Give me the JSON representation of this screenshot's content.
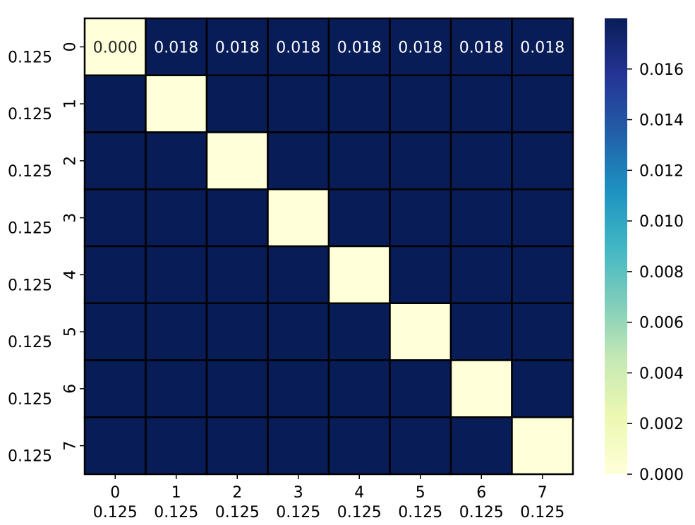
{
  "chart_data": {
    "type": "heatmap",
    "row_labels": [
      "0",
      "1",
      "2",
      "3",
      "4",
      "5",
      "6",
      "7"
    ],
    "row_secondary_labels": [
      "0.125",
      "0.125",
      "0.125",
      "0.125",
      "0.125",
      "0.125",
      "0.125",
      "0.125"
    ],
    "col_labels": [
      "0",
      "1",
      "2",
      "3",
      "4",
      "5",
      "6",
      "7"
    ],
    "col_secondary_labels": [
      "0.125",
      "0.125",
      "0.125",
      "0.125",
      "0.125",
      "0.125",
      "0.125",
      "0.125"
    ],
    "values": [
      [
        0.0,
        0.018,
        0.018,
        0.018,
        0.018,
        0.018,
        0.018,
        0.018
      ],
      [
        0.018,
        0.0,
        0.018,
        0.018,
        0.018,
        0.018,
        0.018,
        0.018
      ],
      [
        0.018,
        0.018,
        0.0,
        0.018,
        0.018,
        0.018,
        0.018,
        0.018
      ],
      [
        0.018,
        0.018,
        0.018,
        0.0,
        0.018,
        0.018,
        0.018,
        0.018
      ],
      [
        0.018,
        0.018,
        0.018,
        0.018,
        0.0,
        0.018,
        0.018,
        0.018
      ],
      [
        0.018,
        0.018,
        0.018,
        0.018,
        0.018,
        0.0,
        0.018,
        0.018
      ],
      [
        0.018,
        0.018,
        0.018,
        0.018,
        0.018,
        0.018,
        0.0,
        0.018
      ],
      [
        0.018,
        0.018,
        0.018,
        0.018,
        0.018,
        0.018,
        0.018,
        0.0
      ]
    ],
    "annotations": [
      {
        "row": 0,
        "col": 0,
        "text": "0.000"
      },
      {
        "row": 0,
        "col": 1,
        "text": "0.018"
      },
      {
        "row": 0,
        "col": 2,
        "text": "0.018"
      },
      {
        "row": 0,
        "col": 3,
        "text": "0.018"
      },
      {
        "row": 0,
        "col": 4,
        "text": "0.018"
      },
      {
        "row": 0,
        "col": 5,
        "text": "0.018"
      },
      {
        "row": 0,
        "col": 6,
        "text": "0.018"
      },
      {
        "row": 0,
        "col": 7,
        "text": "0.018"
      }
    ],
    "colorbar": {
      "range": [
        0.0,
        0.018
      ],
      "ticks": [
        "0.000",
        "0.002",
        "0.004",
        "0.006",
        "0.008",
        "0.010",
        "0.012",
        "0.014",
        "0.016"
      ],
      "colormap": "YlGnBu",
      "stops": [
        "#ffffd9",
        "#edf8b1",
        "#c7e9b4",
        "#7fcdbb",
        "#41b6c4",
        "#1d91c0",
        "#225ea8",
        "#253494",
        "#081d58"
      ]
    },
    "title": "",
    "xlabel": "",
    "ylabel": ""
  }
}
